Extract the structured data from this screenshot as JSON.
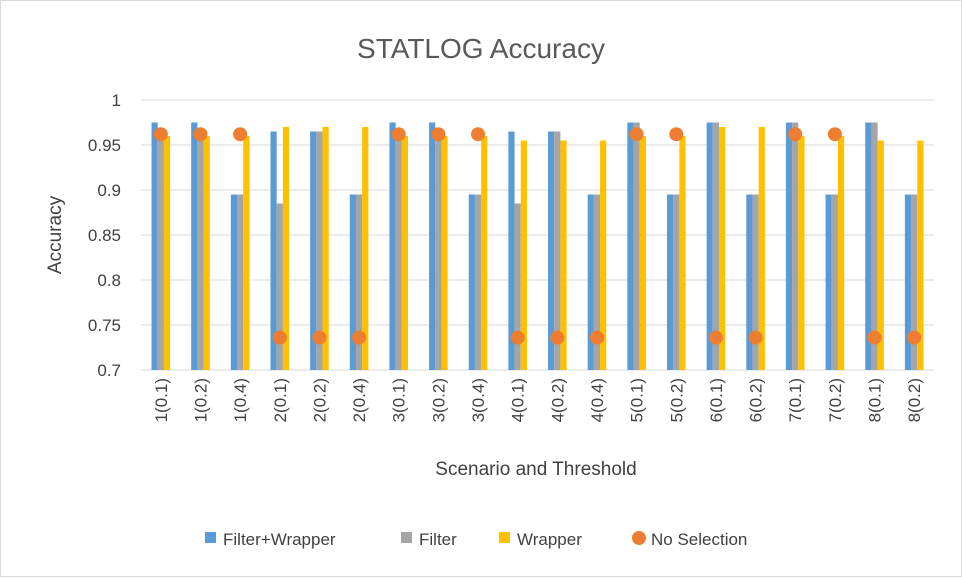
{
  "chart_data": {
    "type": "bar",
    "title": "STATLOG Accuracy",
    "xlabel": "Scenario and Threshold",
    "ylabel": "Accuracy",
    "ylim": [
      0.7,
      1.0
    ],
    "yticks": [
      "0.7",
      "0.75",
      "0.8",
      "0.85",
      "0.9",
      "0.95",
      "1"
    ],
    "categories": [
      "1(0.1)",
      "1(0.2)",
      "1(0.4)",
      "2(0.1)",
      "2(0.2)",
      "2(0.4)",
      "3(0.1)",
      "3(0.2)",
      "3(0.4)",
      "4(0.1)",
      "4(0.2)",
      "4(0.4)",
      "5(0.1)",
      "5(0.2)",
      "6(0.1)",
      "6(0.2)",
      "7(0.1)",
      "7(0.2)",
      "8(0.1)",
      "8(0.2)"
    ],
    "series": [
      {
        "name": "Filter+Wrapper",
        "kind": "bar",
        "color": "#5b9bd5",
        "values": [
          0.975,
          0.975,
          0.895,
          0.965,
          0.965,
          0.895,
          0.975,
          0.975,
          0.895,
          0.965,
          0.965,
          0.895,
          0.975,
          0.895,
          0.975,
          0.895,
          0.975,
          0.895,
          0.975,
          0.895
        ]
      },
      {
        "name": "Filter",
        "kind": "bar",
        "color": "#a5a5a5",
        "values": [
          0.965,
          0.965,
          0.895,
          0.885,
          0.965,
          0.895,
          0.965,
          0.965,
          0.895,
          0.885,
          0.965,
          0.895,
          0.975,
          0.895,
          0.975,
          0.895,
          0.975,
          0.895,
          0.975,
          0.895
        ]
      },
      {
        "name": "Wrapper",
        "kind": "bar",
        "color": "#ffc000",
        "values": [
          0.96,
          0.96,
          0.96,
          0.97,
          0.97,
          0.97,
          0.96,
          0.96,
          0.96,
          0.955,
          0.955,
          0.955,
          0.96,
          0.96,
          0.97,
          0.97,
          0.96,
          0.96,
          0.955,
          0.955
        ]
      },
      {
        "name": "No Selection",
        "kind": "marker",
        "color": "#ed7d31",
        "values": [
          0.962,
          0.962,
          0.962,
          0.736,
          0.736,
          0.736,
          0.962,
          0.962,
          0.962,
          0.736,
          0.736,
          0.736,
          0.962,
          0.962,
          0.736,
          0.736,
          0.962,
          0.962,
          0.736,
          0.736
        ]
      }
    ],
    "grid": true,
    "legend_position": "bottom"
  }
}
